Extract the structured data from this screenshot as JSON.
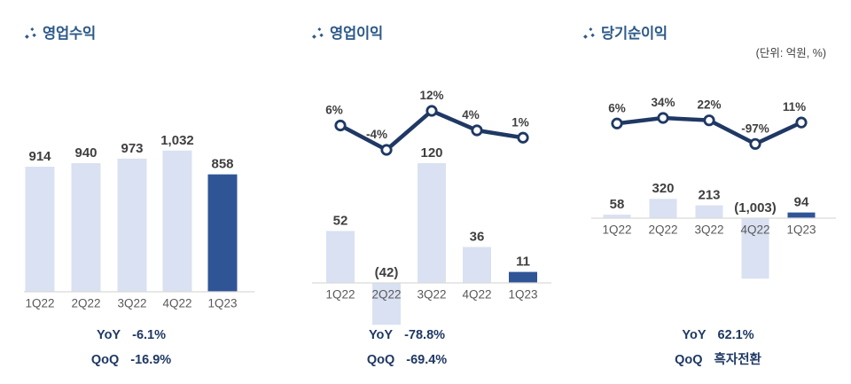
{
  "unit_label": "(단위: 억원, %)",
  "colors": {
    "bar_light": "#d9e1f2",
    "bar_dark": "#2f5597",
    "line": "#1f3864",
    "title": "#2d5a8a",
    "value_label": "#3f3f3f",
    "category_label": "#595959",
    "footer_text": "#1f3864",
    "axis": "#d9d9d9"
  },
  "chart_data": [
    {
      "type": "bar",
      "title": "영업수익",
      "categories": [
        "1Q22",
        "2Q22",
        "3Q22",
        "4Q22",
        "1Q23"
      ],
      "values": [
        914,
        940,
        973,
        1032,
        858
      ],
      "value_labels": [
        "914",
        "940",
        "973",
        "1,032",
        "858"
      ],
      "highlight_index": 4,
      "ylim": [
        0,
        1100
      ],
      "footer": {
        "rows": [
          {
            "label": "YoY",
            "value": "-6.1%"
          },
          {
            "label": "QoQ",
            "value": "-16.9%"
          }
        ]
      }
    },
    {
      "type": "bar+line",
      "title": "영업이익",
      "categories": [
        "1Q22",
        "2Q22",
        "3Q22",
        "4Q22",
        "1Q23"
      ],
      "values": [
        52,
        -42,
        120,
        36,
        11
      ],
      "value_labels": [
        "52",
        "(42)",
        "120",
        "36",
        "11"
      ],
      "line": {
        "values_percent": [
          6,
          -4,
          12,
          4,
          1
        ],
        "labels": [
          "6%",
          "-4%",
          "12%",
          "4%",
          "1%"
        ]
      },
      "highlight_index": 4,
      "ylim": [
        -60,
        140
      ],
      "footer": {
        "rows": [
          {
            "label": "YoY",
            "value": "-78.8%"
          },
          {
            "label": "QoQ",
            "value": "-69.4%"
          }
        ]
      }
    },
    {
      "type": "bar+line",
      "title": "당기순이익",
      "categories": [
        "1Q22",
        "2Q22",
        "3Q22",
        "4Q22",
        "1Q23"
      ],
      "values": [
        58,
        320,
        213,
        -1003,
        94
      ],
      "value_labels": [
        "58",
        "320",
        "213",
        "(1,003)",
        "94"
      ],
      "line": {
        "values_percent": [
          6,
          34,
          22,
          -97,
          11
        ],
        "labels": [
          "6%",
          "34%",
          "22%",
          "-97%",
          "11%"
        ]
      },
      "highlight_index": 4,
      "ylim": [
        -1100,
        400
      ],
      "footer": {
        "rows": [
          {
            "label": "YoY",
            "value": "62.1%"
          },
          {
            "label": "QoQ",
            "value": "흑자전환"
          }
        ]
      }
    }
  ]
}
